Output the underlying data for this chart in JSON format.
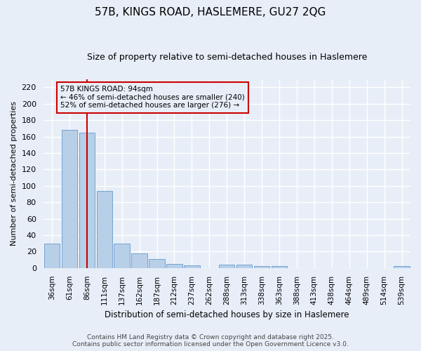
{
  "title": "57B, KINGS ROAD, HASLEMERE, GU27 2QG",
  "subtitle": "Size of property relative to semi-detached houses in Haslemere",
  "xlabel": "Distribution of semi-detached houses by size in Haslemere",
  "ylabel": "Number of semi-detached properties",
  "categories": [
    "36sqm",
    "61sqm",
    "86sqm",
    "111sqm",
    "137sqm",
    "162sqm",
    "187sqm",
    "212sqm",
    "237sqm",
    "262sqm",
    "288sqm",
    "313sqm",
    "338sqm",
    "363sqm",
    "388sqm",
    "413sqm",
    "438sqm",
    "464sqm",
    "489sqm",
    "514sqm",
    "539sqm"
  ],
  "values": [
    30,
    168,
    165,
    94,
    30,
    18,
    11,
    5,
    3,
    0,
    4,
    4,
    2,
    2,
    0,
    0,
    0,
    0,
    0,
    0,
    2
  ],
  "bar_color": "#b8cfe8",
  "bar_edge_color": "#6699cc",
  "vline_x": 2.0,
  "vline_color": "#cc0000",
  "annotation_title": "57B KINGS ROAD: 94sqm",
  "annotation_line1": "← 46% of semi-detached houses are smaller (240)",
  "annotation_line2": "52% of semi-detached houses are larger (276) →",
  "annotation_box_color": "#cc0000",
  "ylim": [
    0,
    230
  ],
  "yticks": [
    0,
    20,
    40,
    60,
    80,
    100,
    120,
    140,
    160,
    180,
    200,
    220
  ],
  "footer1": "Contains HM Land Registry data © Crown copyright and database right 2025.",
  "footer2": "Contains public sector information licensed under the Open Government Licence v3.0.",
  "bg_color": "#e8eef8"
}
